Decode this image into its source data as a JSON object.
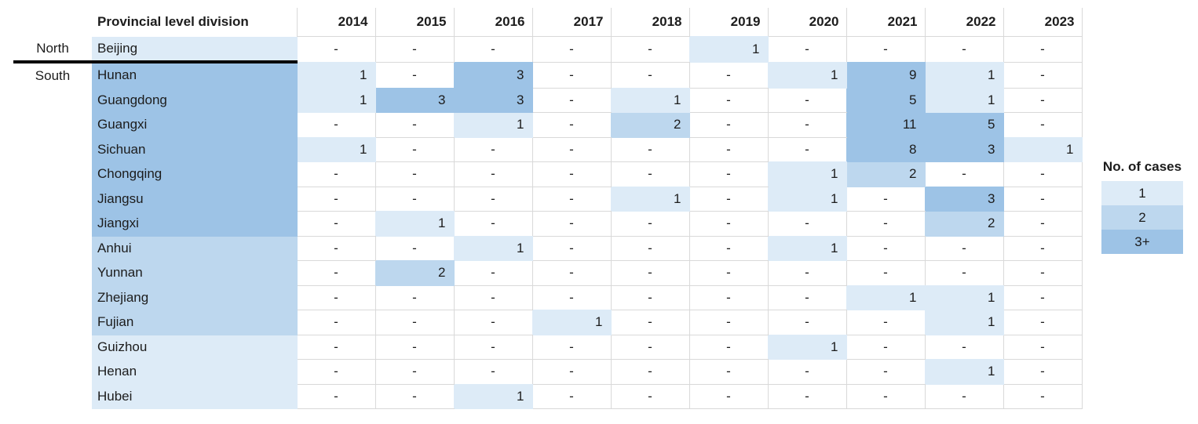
{
  "chart_data": {
    "type": "heatmap",
    "title": "",
    "corner_header": "Provincial level division",
    "x_categories": [
      "2014",
      "2015",
      "2016",
      "2017",
      "2018",
      "2019",
      "2020",
      "2021",
      "2022",
      "2023"
    ],
    "empty_marker": "-",
    "divider_after_row": "Beijing",
    "rows": [
      {
        "region_label": "North",
        "province": "Beijing",
        "province_band": 1,
        "values": [
          null,
          null,
          null,
          null,
          null,
          1,
          null,
          null,
          null,
          null
        ]
      },
      {
        "region_label": "South",
        "province": "Hunan",
        "province_band": 3,
        "values": [
          1,
          null,
          3,
          null,
          null,
          null,
          1,
          9,
          1,
          null
        ]
      },
      {
        "region_label": "",
        "province": "Guangdong",
        "province_band": 3,
        "values": [
          1,
          3,
          3,
          null,
          1,
          null,
          null,
          5,
          1,
          null
        ]
      },
      {
        "region_label": "",
        "province": "Guangxi",
        "province_band": 3,
        "values": [
          null,
          null,
          1,
          null,
          2,
          null,
          null,
          11,
          5,
          null
        ]
      },
      {
        "region_label": "",
        "province": "Sichuan",
        "province_band": 3,
        "values": [
          1,
          null,
          null,
          null,
          null,
          null,
          null,
          8,
          3,
          1
        ]
      },
      {
        "region_label": "",
        "province": "Chongqing",
        "province_band": 3,
        "values": [
          null,
          null,
          null,
          null,
          null,
          null,
          1,
          2,
          null,
          null
        ]
      },
      {
        "region_label": "",
        "province": "Jiangsu",
        "province_band": 3,
        "values": [
          null,
          null,
          null,
          null,
          1,
          null,
          1,
          null,
          3,
          null
        ]
      },
      {
        "region_label": "",
        "province": "Jiangxi",
        "province_band": 3,
        "values": [
          null,
          1,
          null,
          null,
          null,
          null,
          null,
          null,
          2,
          null
        ]
      },
      {
        "region_label": "",
        "province": "Anhui",
        "province_band": 2,
        "values": [
          null,
          null,
          1,
          null,
          null,
          null,
          1,
          null,
          null,
          null
        ]
      },
      {
        "region_label": "",
        "province": "Yunnan",
        "province_band": 2,
        "values": [
          null,
          2,
          null,
          null,
          null,
          null,
          null,
          null,
          null,
          null
        ]
      },
      {
        "region_label": "",
        "province": "Zhejiang",
        "province_band": 2,
        "values": [
          null,
          null,
          null,
          null,
          null,
          null,
          null,
          1,
          1,
          null
        ]
      },
      {
        "region_label": "",
        "province": "Fujian",
        "province_band": 2,
        "values": [
          null,
          null,
          null,
          1,
          null,
          null,
          null,
          null,
          1,
          null
        ]
      },
      {
        "region_label": "",
        "province": "Guizhou",
        "province_band": 1,
        "values": [
          null,
          null,
          null,
          null,
          null,
          null,
          1,
          null,
          null,
          null
        ]
      },
      {
        "region_label": "",
        "province": "Henan",
        "province_band": 1,
        "values": [
          null,
          null,
          null,
          null,
          null,
          null,
          null,
          null,
          1,
          null
        ]
      },
      {
        "region_label": "",
        "province": "Hubei",
        "province_band": 1,
        "values": [
          null,
          null,
          1,
          null,
          null,
          null,
          null,
          null,
          null,
          null
        ]
      }
    ],
    "color_bins": [
      {
        "label": "1",
        "min": 1,
        "color": "#DDEBF7"
      },
      {
        "label": "2",
        "min": 2,
        "color": "#BDD7EE"
      },
      {
        "label": "3+",
        "min": 3,
        "color": "#9DC3E6"
      }
    ],
    "legend_position": "right"
  },
  "legend": {
    "title": "No. of cases"
  },
  "colors": {
    "band1": "#DDEBF7",
    "band2": "#BDD7EE",
    "band3": "#9DC3E6",
    "gridline": "#D9D9D9",
    "divider": "#000000",
    "text": "#1C1C1C",
    "background": "#FFFFFF"
  }
}
